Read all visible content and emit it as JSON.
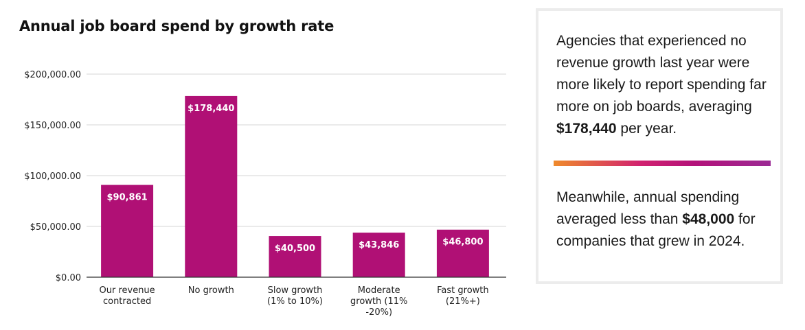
{
  "chart_data": {
    "type": "bar",
    "title": "Annual job board spend by growth rate",
    "categories": [
      [
        "Our revenue",
        "contracted"
      ],
      [
        "No growth"
      ],
      [
        "Slow growth",
        "(1% to 10%)"
      ],
      [
        "Moderate",
        "growth (11%",
        "-20%)"
      ],
      [
        "Fast growth",
        "(21%+)"
      ]
    ],
    "values": [
      90861,
      178440,
      40500,
      43846,
      46800
    ],
    "data_labels": [
      "$90,861",
      "$178,440",
      "$40,500",
      "$43,846",
      "$46,800"
    ],
    "y_ticks": [
      "$0.00",
      "$50,000.00",
      "$100,000.00",
      "$150,000.00",
      "$200,000.00"
    ],
    "y_tick_values": [
      0,
      50000,
      100000,
      150000,
      200000
    ],
    "ylim": [
      0,
      200000
    ],
    "bar_color": "#b01075",
    "grid": true
  },
  "panel": {
    "text1_pre": "Agencies that experienced no revenue growth last year were more likely to report spending far more on job boards, averaging ",
    "text1_bold": "$178,440",
    "text1_post": " per year.",
    "text2_pre": "Meanwhile, annual spending averaged less than ",
    "text2_bold": "$48,000",
    "text2_post": " for companies that grew in 2024."
  }
}
